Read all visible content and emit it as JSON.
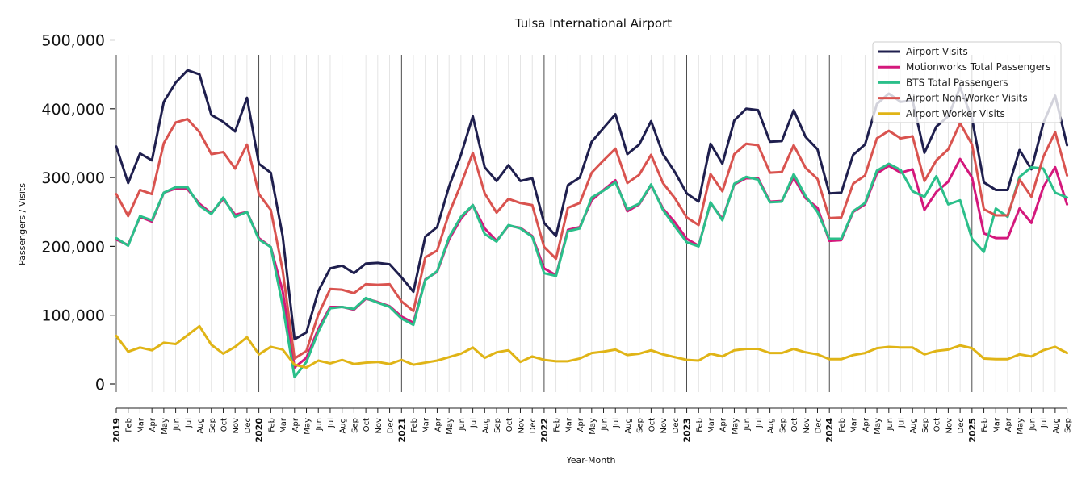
{
  "chart_data": {
    "type": "line",
    "title": "Tulsa International Airport",
    "xlabel": "Year-Month",
    "ylabel": "Passengers / Visits",
    "ylim": [
      0,
      500000
    ],
    "yticks": [
      0,
      100000,
      200000,
      300000,
      400000,
      500000
    ],
    "ytick_labels": [
      "0",
      "100,000",
      "200,000",
      "300,000",
      "400,000",
      "500,000"
    ],
    "x": [
      "2019-01",
      "2019-02",
      "2019-03",
      "2019-04",
      "2019-05",
      "2019-06",
      "2019-07",
      "2019-08",
      "2019-09",
      "2019-10",
      "2019-11",
      "2019-12",
      "2020-01",
      "2020-02",
      "2020-03",
      "2020-04",
      "2020-05",
      "2020-06",
      "2020-07",
      "2020-08",
      "2020-09",
      "2020-10",
      "2020-11",
      "2020-12",
      "2021-01",
      "2021-02",
      "2021-03",
      "2021-04",
      "2021-05",
      "2021-06",
      "2021-07",
      "2021-08",
      "2021-09",
      "2021-10",
      "2021-11",
      "2021-12",
      "2022-01",
      "2022-02",
      "2022-03",
      "2022-04",
      "2022-05",
      "2022-06",
      "2022-07",
      "2022-08",
      "2022-09",
      "2022-10",
      "2022-11",
      "2022-12",
      "2023-01",
      "2023-02",
      "2023-03",
      "2023-04",
      "2023-05",
      "2023-06",
      "2023-07",
      "2023-08",
      "2023-09",
      "2023-10",
      "2023-11",
      "2023-12",
      "2024-01",
      "2024-02",
      "2024-03",
      "2024-04",
      "2024-05",
      "2024-06",
      "2024-07",
      "2024-08",
      "2024-09",
      "2024-10",
      "2024-11",
      "2024-12",
      "2025-01",
      "2025-02",
      "2025-03",
      "2025-04",
      "2025-05",
      "2025-06",
      "2025-07",
      "2025-08",
      "2025-09"
    ],
    "x_tick_labels": [
      "2019",
      "Feb",
      "Mar",
      "Apr",
      "May",
      "Jun",
      "Jul",
      "Aug",
      "Sep",
      "Oct",
      "Nov",
      "Dec",
      "2020",
      "Feb",
      "Mar",
      "Apr",
      "May",
      "Jun",
      "Jul",
      "Aug",
      "Sep",
      "Oct",
      "Nov",
      "Dec",
      "2021",
      "Feb",
      "Mar",
      "Apr",
      "May",
      "Jun",
      "Jul",
      "Aug",
      "Sep",
      "Oct",
      "Nov",
      "Dec",
      "2022",
      "Feb",
      "Mar",
      "Apr",
      "May",
      "Jun",
      "Jul",
      "Aug",
      "Sep",
      "Oct",
      "Nov",
      "Dec",
      "2023",
      "Feb",
      "Mar",
      "Apr",
      "May",
      "Jun",
      "Jul",
      "Aug",
      "Sep",
      "Oct",
      "Nov",
      "Dec",
      "2024",
      "Feb",
      "Mar",
      "Apr",
      "May",
      "Jun",
      "Jul",
      "Aug",
      "Sep",
      "Oct",
      "Nov",
      "Dec",
      "2025",
      "Feb",
      "Mar",
      "Apr",
      "May",
      "Jun",
      "Jul",
      "Aug",
      "Sep"
    ],
    "grid": "vertical",
    "legend_position": "top-right",
    "series": [
      {
        "name": "Airport Visits",
        "color": "#1f1f4e",
        "values": [
          345000,
          292000,
          335000,
          325000,
          410000,
          438000,
          456000,
          450000,
          391000,
          381000,
          367000,
          416000,
          320000,
          307000,
          215000,
          65000,
          75000,
          135000,
          168000,
          172000,
          161000,
          175000,
          176000,
          174000,
          155000,
          134000,
          214000,
          228000,
          287000,
          333000,
          389000,
          315000,
          295000,
          318000,
          295000,
          299000,
          234000,
          215000,
          289000,
          300000,
          352000,
          372000,
          392000,
          334000,
          348000,
          382000,
          334000,
          308000,
          277000,
          265000,
          349000,
          320000,
          383000,
          400000,
          398000,
          352000,
          353000,
          398000,
          359000,
          341000,
          277000,
          278000,
          333000,
          348000,
          407000,
          422000,
          410000,
          412000,
          336000,
          374000,
          389000,
          431000,
          386000,
          293000,
          282000,
          282000,
          340000,
          312000,
          379000,
          419000,
          347000
        ]
      },
      {
        "name": "Motionworks Total Passengers",
        "color": "#d4187c",
        "values": [
          210000,
          202000,
          243000,
          236000,
          278000,
          284000,
          283000,
          262000,
          248000,
          269000,
          246000,
          250000,
          212000,
          199000,
          135000,
          24000,
          38000,
          80000,
          112000,
          112000,
          108000,
          124000,
          119000,
          113000,
          98000,
          89000,
          152000,
          163000,
          210000,
          240000,
          260000,
          226000,
          208000,
          230000,
          227000,
          215000,
          168000,
          158000,
          224000,
          228000,
          267000,
          282000,
          296000,
          251000,
          261000,
          289000,
          255000,
          235000,
          211000,
          201000,
          263000,
          240000,
          290000,
          299000,
          299000,
          265000,
          266000,
          300000,
          270000,
          256000,
          208000,
          209000,
          250000,
          261000,
          306000,
          317000,
          307000,
          312000,
          253000,
          279000,
          294000,
          327000,
          300000,
          219000,
          212000,
          212000,
          255000,
          234000,
          286000,
          315000,
          261000
        ]
      },
      {
        "name": "BTS Total Passengers",
        "color": "#2bbf8a",
        "values": [
          212000,
          201000,
          244000,
          238000,
          278000,
          286000,
          286000,
          259000,
          247000,
          271000,
          243000,
          250000,
          210000,
          199000,
          114000,
          10000,
          32000,
          76000,
          110000,
          112000,
          109000,
          125000,
          118000,
          112000,
          95000,
          86000,
          151000,
          164000,
          213000,
          243000,
          260000,
          218000,
          207000,
          231000,
          226000,
          214000,
          161000,
          157000,
          222000,
          226000,
          271000,
          281000,
          293000,
          254000,
          262000,
          290000,
          253000,
          229000,
          206000,
          200000,
          264000,
          238000,
          291000,
          301000,
          297000,
          264000,
          265000,
          305000,
          273000,
          250000,
          211000,
          211000,
          251000,
          263000,
          310000,
          320000,
          311000,
          280000,
          272000,
          302000,
          261000,
          267000,
          211000,
          192000,
          255000,
          243000,
          301000,
          315000,
          313000,
          278000,
          271000
        ]
      },
      {
        "name": "Airport Non-Worker Visits",
        "color": "#d9534f",
        "values": [
          276000,
          244000,
          282000,
          276000,
          350000,
          380000,
          385000,
          366000,
          334000,
          337000,
          313000,
          348000,
          276000,
          253000,
          165000,
          37000,
          48000,
          101000,
          138000,
          137000,
          132000,
          145000,
          144000,
          145000,
          120000,
          106000,
          184000,
          194000,
          248000,
          290000,
          336000,
          277000,
          249000,
          269000,
          263000,
          260000,
          199000,
          182000,
          256000,
          263000,
          307000,
          325000,
          342000,
          292000,
          304000,
          333000,
          292000,
          270000,
          242000,
          231000,
          305000,
          280000,
          334000,
          349000,
          347000,
          307000,
          308000,
          347000,
          314000,
          298000,
          241000,
          242000,
          291000,
          303000,
          357000,
          368000,
          357000,
          360000,
          295000,
          325000,
          341000,
          379000,
          348000,
          254000,
          245000,
          245000,
          297000,
          272000,
          330000,
          366000,
          303000
        ]
      },
      {
        "name": "Airport Worker Visits",
        "color": "#e0b416",
        "values": [
          70000,
          47000,
          53000,
          49000,
          60000,
          58000,
          71000,
          84000,
          57000,
          44000,
          54000,
          68000,
          43000,
          54000,
          50000,
          28000,
          24000,
          34000,
          30000,
          35000,
          29000,
          31000,
          32000,
          29000,
          35000,
          28000,
          31000,
          34000,
          39000,
          44000,
          53000,
          38000,
          46000,
          49000,
          32000,
          40000,
          35000,
          33000,
          33000,
          37000,
          45000,
          47000,
          50000,
          42000,
          44000,
          49000,
          43000,
          39000,
          35000,
          34000,
          44000,
          40000,
          49000,
          51000,
          51000,
          45000,
          45000,
          51000,
          46000,
          43000,
          36000,
          36000,
          42000,
          45000,
          52000,
          54000,
          53000,
          53000,
          43000,
          48000,
          50000,
          56000,
          52000,
          37000,
          36000,
          36000,
          43000,
          40000,
          49000,
          54000,
          45000
        ]
      }
    ]
  }
}
